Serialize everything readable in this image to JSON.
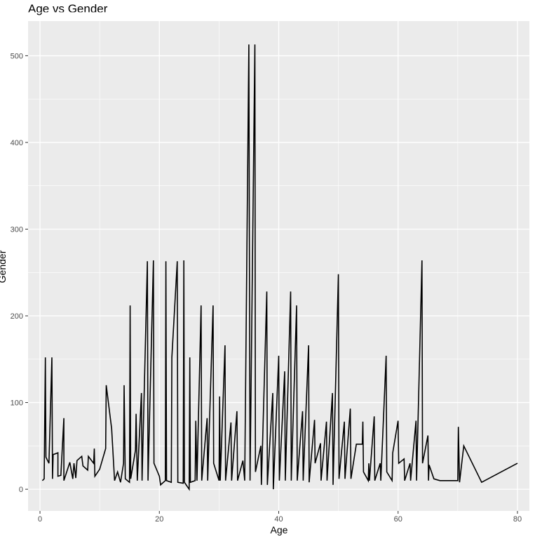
{
  "chart_data": {
    "type": "line",
    "title": "Age vs Gender",
    "xlabel": "Age",
    "ylabel": "Gender",
    "xlim": [
      -2,
      82
    ],
    "ylim": [
      -25,
      540
    ],
    "x_ticks": [
      0,
      20,
      40,
      60,
      80
    ],
    "y_ticks": [
      0,
      100,
      200,
      300,
      400,
      500
    ],
    "grid": true,
    "background": "#EBEBEB",
    "line_color": "#000000",
    "series": [
      {
        "points": [
          [
            0.4,
            10
          ],
          [
            0.7,
            12
          ],
          [
            0.9,
            152
          ],
          [
            1,
            37
          ],
          [
            1.5,
            30
          ],
          [
            2,
            152
          ],
          [
            2.1,
            12
          ],
          [
            2.2,
            40
          ],
          [
            3,
            42
          ],
          [
            3,
            15
          ],
          [
            3.5,
            16
          ],
          [
            4,
            82
          ],
          [
            4,
            10
          ],
          [
            5,
            31
          ],
          [
            5.5,
            12
          ],
          [
            5.7,
            30
          ],
          [
            6,
            13
          ],
          [
            6.2,
            33
          ],
          [
            7,
            38
          ],
          [
            7.2,
            27
          ],
          [
            8,
            22
          ],
          [
            8.1,
            38
          ],
          [
            9,
            30
          ],
          [
            9.1,
            47
          ],
          [
            9.2,
            15
          ],
          [
            10,
            23
          ],
          [
            11,
            47
          ],
          [
            11.1,
            120
          ],
          [
            12,
            70
          ],
          [
            12.5,
            10
          ],
          [
            13,
            20
          ],
          [
            13.5,
            8
          ],
          [
            14,
            30
          ],
          [
            14.1,
            120
          ],
          [
            14.3,
            12
          ],
          [
            15,
            8
          ],
          [
            15.1,
            212
          ],
          [
            15.2,
            12
          ],
          [
            16,
            45
          ],
          [
            16.1,
            87
          ],
          [
            16.3,
            10
          ],
          [
            17,
            111
          ],
          [
            17.1,
            10
          ],
          [
            18,
            263
          ],
          [
            18.1,
            10
          ],
          [
            19,
            264
          ],
          [
            19.1,
            30
          ],
          [
            20,
            15
          ],
          [
            20.2,
            5
          ],
          [
            21,
            10
          ],
          [
            21.1,
            263
          ],
          [
            21.2,
            10
          ],
          [
            22,
            8
          ],
          [
            22.1,
            152
          ],
          [
            23,
            263
          ],
          [
            23.1,
            8
          ],
          [
            24,
            7
          ],
          [
            24.1,
            264
          ],
          [
            24.2,
            8
          ],
          [
            25,
            0
          ],
          [
            25.1,
            152
          ],
          [
            25.2,
            8
          ],
          [
            26,
            10
          ],
          [
            26.1,
            79
          ],
          [
            26.3,
            10
          ],
          [
            27,
            212
          ],
          [
            27.1,
            10
          ],
          [
            28,
            82
          ],
          [
            28.1,
            10
          ],
          [
            29,
            212
          ],
          [
            29.1,
            30
          ],
          [
            30,
            10
          ],
          [
            30.1,
            107
          ],
          [
            30.2,
            10
          ],
          [
            31,
            166
          ],
          [
            31.1,
            10
          ],
          [
            32,
            77
          ],
          [
            32.1,
            10
          ],
          [
            33,
            90
          ],
          [
            33.1,
            10
          ],
          [
            34,
            33
          ],
          [
            34.3,
            10
          ],
          [
            35,
            513
          ],
          [
            35.2,
            10
          ],
          [
            36,
            513
          ],
          [
            36.1,
            20
          ],
          [
            37,
            50
          ],
          [
            37.1,
            5
          ],
          [
            38,
            228
          ],
          [
            38.1,
            5
          ],
          [
            39,
            111
          ],
          [
            39.1,
            0
          ],
          [
            40,
            154
          ],
          [
            40.1,
            10
          ],
          [
            41,
            136
          ],
          [
            41.1,
            10
          ],
          [
            42,
            228
          ],
          [
            42.1,
            10
          ],
          [
            43,
            212
          ],
          [
            43.1,
            10
          ],
          [
            44,
            90
          ],
          [
            44.1,
            10
          ],
          [
            45,
            166
          ],
          [
            45.1,
            8
          ],
          [
            46,
            80
          ],
          [
            46.1,
            30
          ],
          [
            47,
            53
          ],
          [
            47.1,
            10
          ],
          [
            48,
            78
          ],
          [
            48.1,
            10
          ],
          [
            49,
            111
          ],
          [
            49.1,
            5
          ],
          [
            50,
            248
          ],
          [
            50.1,
            12
          ],
          [
            51,
            78
          ],
          [
            51.1,
            12
          ],
          [
            52,
            93
          ],
          [
            52.1,
            12
          ],
          [
            53,
            52
          ],
          [
            54,
            52
          ],
          [
            54.1,
            78
          ],
          [
            54.2,
            20
          ],
          [
            55,
            10
          ],
          [
            55.1,
            30
          ],
          [
            55.2,
            10
          ],
          [
            56,
            84
          ],
          [
            56.1,
            10
          ],
          [
            57,
            30
          ],
          [
            57.1,
            10
          ],
          [
            58,
            154
          ],
          [
            58.1,
            20
          ],
          [
            59,
            10
          ],
          [
            59.1,
            42
          ],
          [
            60,
            79
          ],
          [
            60.1,
            30
          ],
          [
            61,
            35
          ],
          [
            61.1,
            10
          ],
          [
            62,
            30
          ],
          [
            62.1,
            10
          ],
          [
            63,
            79
          ],
          [
            63.1,
            10
          ],
          [
            64,
            264
          ],
          [
            64.1,
            30
          ],
          [
            65,
            62
          ],
          [
            65.1,
            10
          ],
          [
            65.2,
            28
          ],
          [
            66,
            12
          ],
          [
            67,
            10
          ],
          [
            69,
            10
          ],
          [
            70,
            10
          ],
          [
            70.1,
            72
          ],
          [
            70.3,
            8
          ],
          [
            71,
            50
          ],
          [
            74,
            8
          ],
          [
            80,
            30
          ]
        ]
      }
    ]
  }
}
